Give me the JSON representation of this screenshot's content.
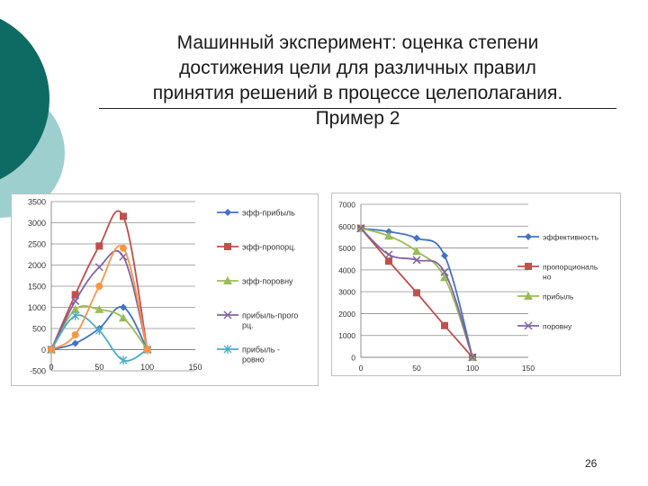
{
  "slide": {
    "title_lines": [
      "Машинный эксперимент: оценка степени",
      "достижения цели для различных правил",
      "принятия решений в процессе целеполагания.",
      "Пример 2"
    ],
    "page_number": "26",
    "colors": {
      "deco_dark": "#0e6b63",
      "deco_light": "#9ccfce"
    }
  },
  "chart_data": [
    {
      "type": "line",
      "title": "",
      "xlabel": "",
      "ylabel": "",
      "xlim": [
        0,
        150
      ],
      "ylim": [
        -500,
        3500
      ],
      "x_ticks": [
        "0",
        "50",
        "100",
        "150"
      ],
      "y_ticks": [
        "-500",
        "0",
        "500",
        "1000",
        "1500",
        "2000",
        "2500",
        "3000",
        "3500"
      ],
      "grid": "horizontal",
      "legend_position": "right",
      "series": [
        {
          "name": "эфф-прибыль",
          "color": "#4472c4",
          "marker": "diamond",
          "x": [
            0,
            25,
            50,
            75,
            100
          ],
          "y": [
            0,
            150,
            500,
            1000,
            0
          ]
        },
        {
          "name": "эфф-пропорц.",
          "color": "#c0504d",
          "marker": "square",
          "x": [
            0,
            25,
            50,
            75,
            100
          ],
          "y": [
            0,
            1300,
            2450,
            3150,
            0
          ]
        },
        {
          "name": "эфф-поровну",
          "color": "#9bbb59",
          "marker": "triangle",
          "x": [
            0,
            25,
            50,
            75,
            100
          ],
          "y": [
            0,
            950,
            950,
            750,
            0
          ]
        },
        {
          "name": "прибыль-пропорц.",
          "legend_lines": [
            "прибыль-прого",
            "рц."
          ],
          "color": "#8064a2",
          "marker": "x",
          "x": [
            0,
            25,
            50,
            75,
            100
          ],
          "y": [
            0,
            1150,
            1950,
            2200,
            0
          ]
        },
        {
          "name": "прибыль-ровно",
          "legend_lines": [
            "прибыль -",
            "ровно"
          ],
          "color": "#4bacc6",
          "marker": "star",
          "x": [
            0,
            25,
            50,
            75,
            100
          ],
          "y": [
            0,
            800,
            450,
            -250,
            0
          ]
        },
        {
          "name": "",
          "color": "#f79646",
          "marker": "circle",
          "x": [
            0,
            25,
            50,
            75,
            100
          ],
          "y": [
            0,
            350,
            1500,
            2400,
            0
          ]
        }
      ]
    },
    {
      "type": "line",
      "title": "",
      "xlabel": "",
      "ylabel": "",
      "xlim": [
        0,
        150
      ],
      "ylim": [
        0,
        7000
      ],
      "x_ticks": [
        "0",
        "50",
        "100",
        "150"
      ],
      "y_ticks": [
        "0",
        "1000",
        "2000",
        "3000",
        "4000",
        "5000",
        "6000",
        "7000"
      ],
      "grid": "horizontal",
      "legend_position": "right",
      "series": [
        {
          "name": "эффективность",
          "color": "#4472c4",
          "marker": "diamond",
          "x": [
            0,
            25,
            50,
            75,
            100
          ],
          "y": [
            5900,
            5750,
            5450,
            4650,
            0
          ]
        },
        {
          "name": "пропорционально",
          "legend_lines": [
            "пропорциональ",
            "но"
          ],
          "color": "#c0504d",
          "marker": "square",
          "x": [
            0,
            25,
            50,
            75,
            100
          ],
          "y": [
            5900,
            4400,
            2950,
            1450,
            0
          ]
        },
        {
          "name": "прибыль",
          "color": "#9bbb59",
          "marker": "triangle",
          "x": [
            0,
            25,
            50,
            75,
            100
          ],
          "y": [
            5900,
            5550,
            4850,
            3650,
            0
          ]
        },
        {
          "name": "поровну",
          "color": "#8064a2",
          "marker": "x",
          "x": [
            0,
            25,
            50,
            75,
            100
          ],
          "y": [
            5900,
            4700,
            4450,
            3900,
            0
          ]
        }
      ]
    }
  ]
}
